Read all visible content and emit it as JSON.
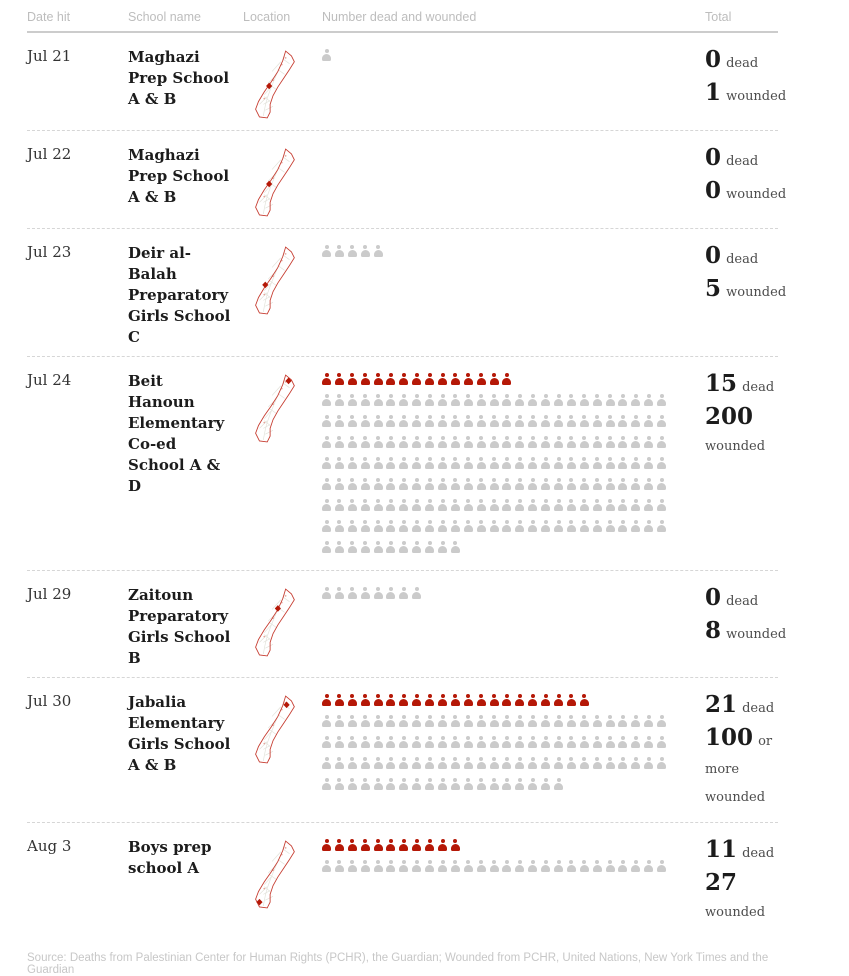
{
  "colors": {
    "dead_icon": "#b51807",
    "wounded_icon": "#cbcbcb",
    "map_outline": "#c63c30",
    "marker": "#b51807",
    "header_text": "#bdbdbd",
    "dark_text": "#1c1c1c"
  },
  "table": {
    "columns": [
      {
        "label": "Date hit"
      },
      {
        "label": "School name"
      },
      {
        "label": "Location"
      },
      {
        "label": "Number dead and wounded"
      },
      {
        "label": "Total"
      }
    ]
  },
  "rows": [
    {
      "date": "Jul 21",
      "school": "Maghazi Prep School A & B",
      "dead_icons": 0,
      "wounded_icons": 1,
      "total_dead": "0",
      "dead_label": "dead",
      "total_wounded": "1",
      "wounded_label": "wounded",
      "marker": {
        "x": 27,
        "y": 39
      }
    },
    {
      "date": "Jul 22",
      "school": "Maghazi Prep School A & B",
      "dead_icons": 0,
      "wounded_icons": 0,
      "total_dead": "0",
      "dead_label": "dead",
      "total_wounded": "0",
      "wounded_label": "wounded",
      "marker": {
        "x": 27,
        "y": 39
      }
    },
    {
      "date": "Jul 23",
      "school": "Deir al-Balah Preparatory Girls School C",
      "dead_icons": 0,
      "wounded_icons": 5,
      "total_dead": "0",
      "dead_label": "dead",
      "total_wounded": "5",
      "wounded_label": "wounded",
      "marker": {
        "x": 23,
        "y": 42
      }
    },
    {
      "date": "Jul 24",
      "school": "Beit Hanoun Elementary Co-ed School A & D",
      "dead_icons": 15,
      "wounded_icons": 200,
      "total_dead": "15",
      "dead_label": "dead",
      "total_wounded": "200",
      "wounded_label": "wounded",
      "marker": {
        "x": 47,
        "y": 9
      }
    },
    {
      "date": "Jul 29",
      "school": "Zaitoun Preparatory Girls School B",
      "dead_icons": 0,
      "wounded_icons": 8,
      "total_dead": "0",
      "dead_label": "dead",
      "total_wounded": "8",
      "wounded_label": "wounded",
      "marker": {
        "x": 36,
        "y": 23
      }
    },
    {
      "date": "Jul 30",
      "school": "Jabalia Elementary Girls School A & B",
      "dead_icons": 21,
      "wounded_icons": 100,
      "total_dead": "21",
      "dead_label": "dead",
      "total_wounded": "100",
      "wounded_label": "or more wounded",
      "marker": {
        "x": 45,
        "y": 12
      }
    },
    {
      "date": "Aug 3",
      "school": "Boys prep school A",
      "dead_icons": 11,
      "wounded_icons": 27,
      "total_dead": "11",
      "dead_label": "dead",
      "total_wounded": "27",
      "wounded_label": "wounded",
      "marker": {
        "x": 17,
        "y": 66
      }
    }
  ],
  "chart_data": {
    "type": "table",
    "subtype": "pictogram",
    "unit": "1 icon = 1 person",
    "legend": {
      "dead_color": "#b51807",
      "wounded_color": "#cbcbcb"
    },
    "columns": [
      "Date hit",
      "School name",
      "Location",
      "Number dead and wounded",
      "Total"
    ],
    "rows": [
      {
        "date": "Jul 21",
        "school": "Maghazi Prep School A & B",
        "dead": 0,
        "wounded": 1
      },
      {
        "date": "Jul 22",
        "school": "Maghazi Prep School A & B",
        "dead": 0,
        "wounded": 0
      },
      {
        "date": "Jul 23",
        "school": "Deir al-Balah Preparatory Girls School C",
        "dead": 0,
        "wounded": 5
      },
      {
        "date": "Jul 24",
        "school": "Beit Hanoun Elementary Co-ed School A & D",
        "dead": 15,
        "wounded": 200
      },
      {
        "date": "Jul 29",
        "school": "Zaitoun Preparatory Girls School B",
        "dead": 0,
        "wounded": 8
      },
      {
        "date": "Jul 30",
        "school": "Jabalia Elementary Girls School A & B",
        "dead": 21,
        "wounded": 100,
        "wounded_qualifier": "or more"
      },
      {
        "date": "Aug 3",
        "school": "Boys prep school A",
        "dead": 11,
        "wounded": 27
      }
    ]
  },
  "source": "Source: Deaths from Palestinian Center for Human Rights (PCHR), the Guardian; Wounded from PCHR, United Nations, New York Times and the Guardian"
}
